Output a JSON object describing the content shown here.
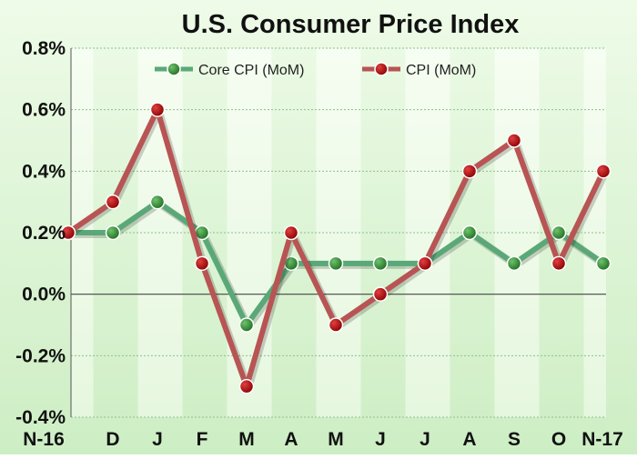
{
  "chart_data": {
    "type": "line",
    "title": "U.S. Consumer Price Index",
    "xlabel": "",
    "ylabel": "",
    "categories": [
      "N-16",
      "D",
      "J",
      "F",
      "M",
      "A",
      "M",
      "J",
      "J",
      "A",
      "S",
      "O",
      "N-17"
    ],
    "ylim": [
      -0.4,
      0.8
    ],
    "yticks": [
      -0.4,
      -0.2,
      0.0,
      0.2,
      0.4,
      0.6,
      0.8
    ],
    "ytick_labels": [
      "-0.4%",
      "-0.2%",
      "0.0%",
      "0.2%",
      "0.4%",
      "0.6%",
      "0.8%"
    ],
    "grid": true,
    "legend_position": "top-center",
    "series": [
      {
        "name": "Core CPI (MoM)",
        "color": "#2e7d32",
        "line_color": "#5aa878",
        "values": [
          0.2,
          0.2,
          0.3,
          0.2,
          -0.1,
          0.1,
          0.1,
          0.1,
          0.1,
          0.2,
          0.1,
          0.2,
          0.1
        ]
      },
      {
        "name": "CPI (MoM)",
        "color": "#b80000",
        "line_color": "#b85454",
        "values": [
          0.2,
          0.3,
          0.6,
          0.1,
          -0.3,
          0.2,
          -0.1,
          0.0,
          0.1,
          0.4,
          0.5,
          0.1,
          0.4
        ]
      }
    ]
  }
}
